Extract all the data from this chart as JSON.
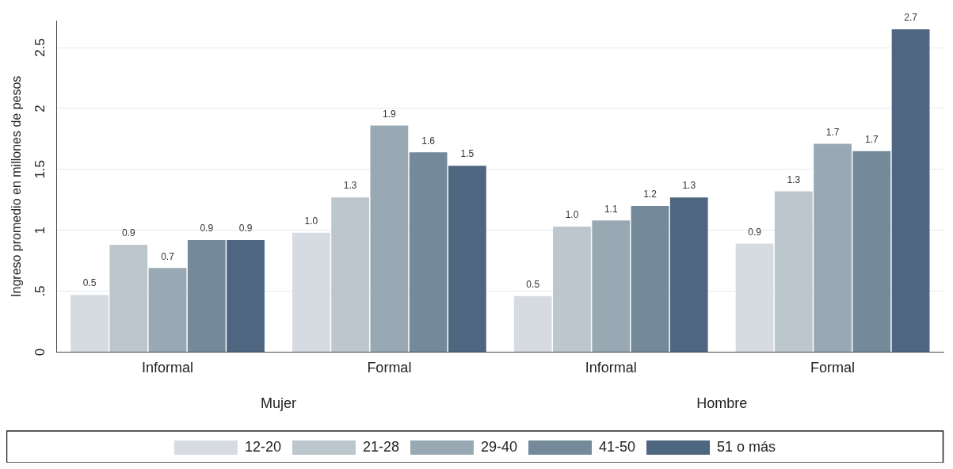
{
  "chart_data": {
    "type": "bar",
    "ylabel": "Ingreso promedio en millones de pesos",
    "categories": [
      "Informal",
      "Formal",
      "Informal",
      "Formal"
    ],
    "annotations": [
      "Mujer",
      "Hombre"
    ],
    "series": [
      {
        "name": "12-20",
        "color": "#d6dbe2",
        "values": [
          0.47,
          0.98,
          0.46,
          0.89
        ],
        "value_labels": [
          "0.5",
          "1.0",
          "0.5",
          "0.9"
        ]
      },
      {
        "name": "21-28",
        "color": "#bcc6cd",
        "values": [
          0.88,
          1.27,
          1.03,
          1.32
        ],
        "value_labels": [
          "0.9",
          "1.3",
          "1.0",
          "1.3"
        ]
      },
      {
        "name": "29-40",
        "color": "#98a9b3",
        "values": [
          0.69,
          1.86,
          1.08,
          1.71
        ],
        "value_labels": [
          "0.7",
          "1.9",
          "1.1",
          "1.7"
        ]
      },
      {
        "name": "41-50",
        "color": "#748a9a",
        "values": [
          0.92,
          1.64,
          1.2,
          1.65
        ],
        "value_labels": [
          "0.9",
          "1.6",
          "1.2",
          "1.7"
        ]
      },
      {
        "name": "51 o más",
        "color": "#4e6680",
        "values": [
          0.92,
          1.53,
          1.27,
          2.65
        ],
        "value_labels": [
          "0.9",
          "1.5",
          "1.3",
          "2.7"
        ]
      }
    ],
    "ylim": [
      0,
      2.72
    ],
    "yticks": [
      0,
      {
        "value": 0.5,
        "label": ".5"
      },
      1,
      1.5,
      2,
      2.5
    ],
    "grid": "y",
    "legend": "bottom"
  }
}
